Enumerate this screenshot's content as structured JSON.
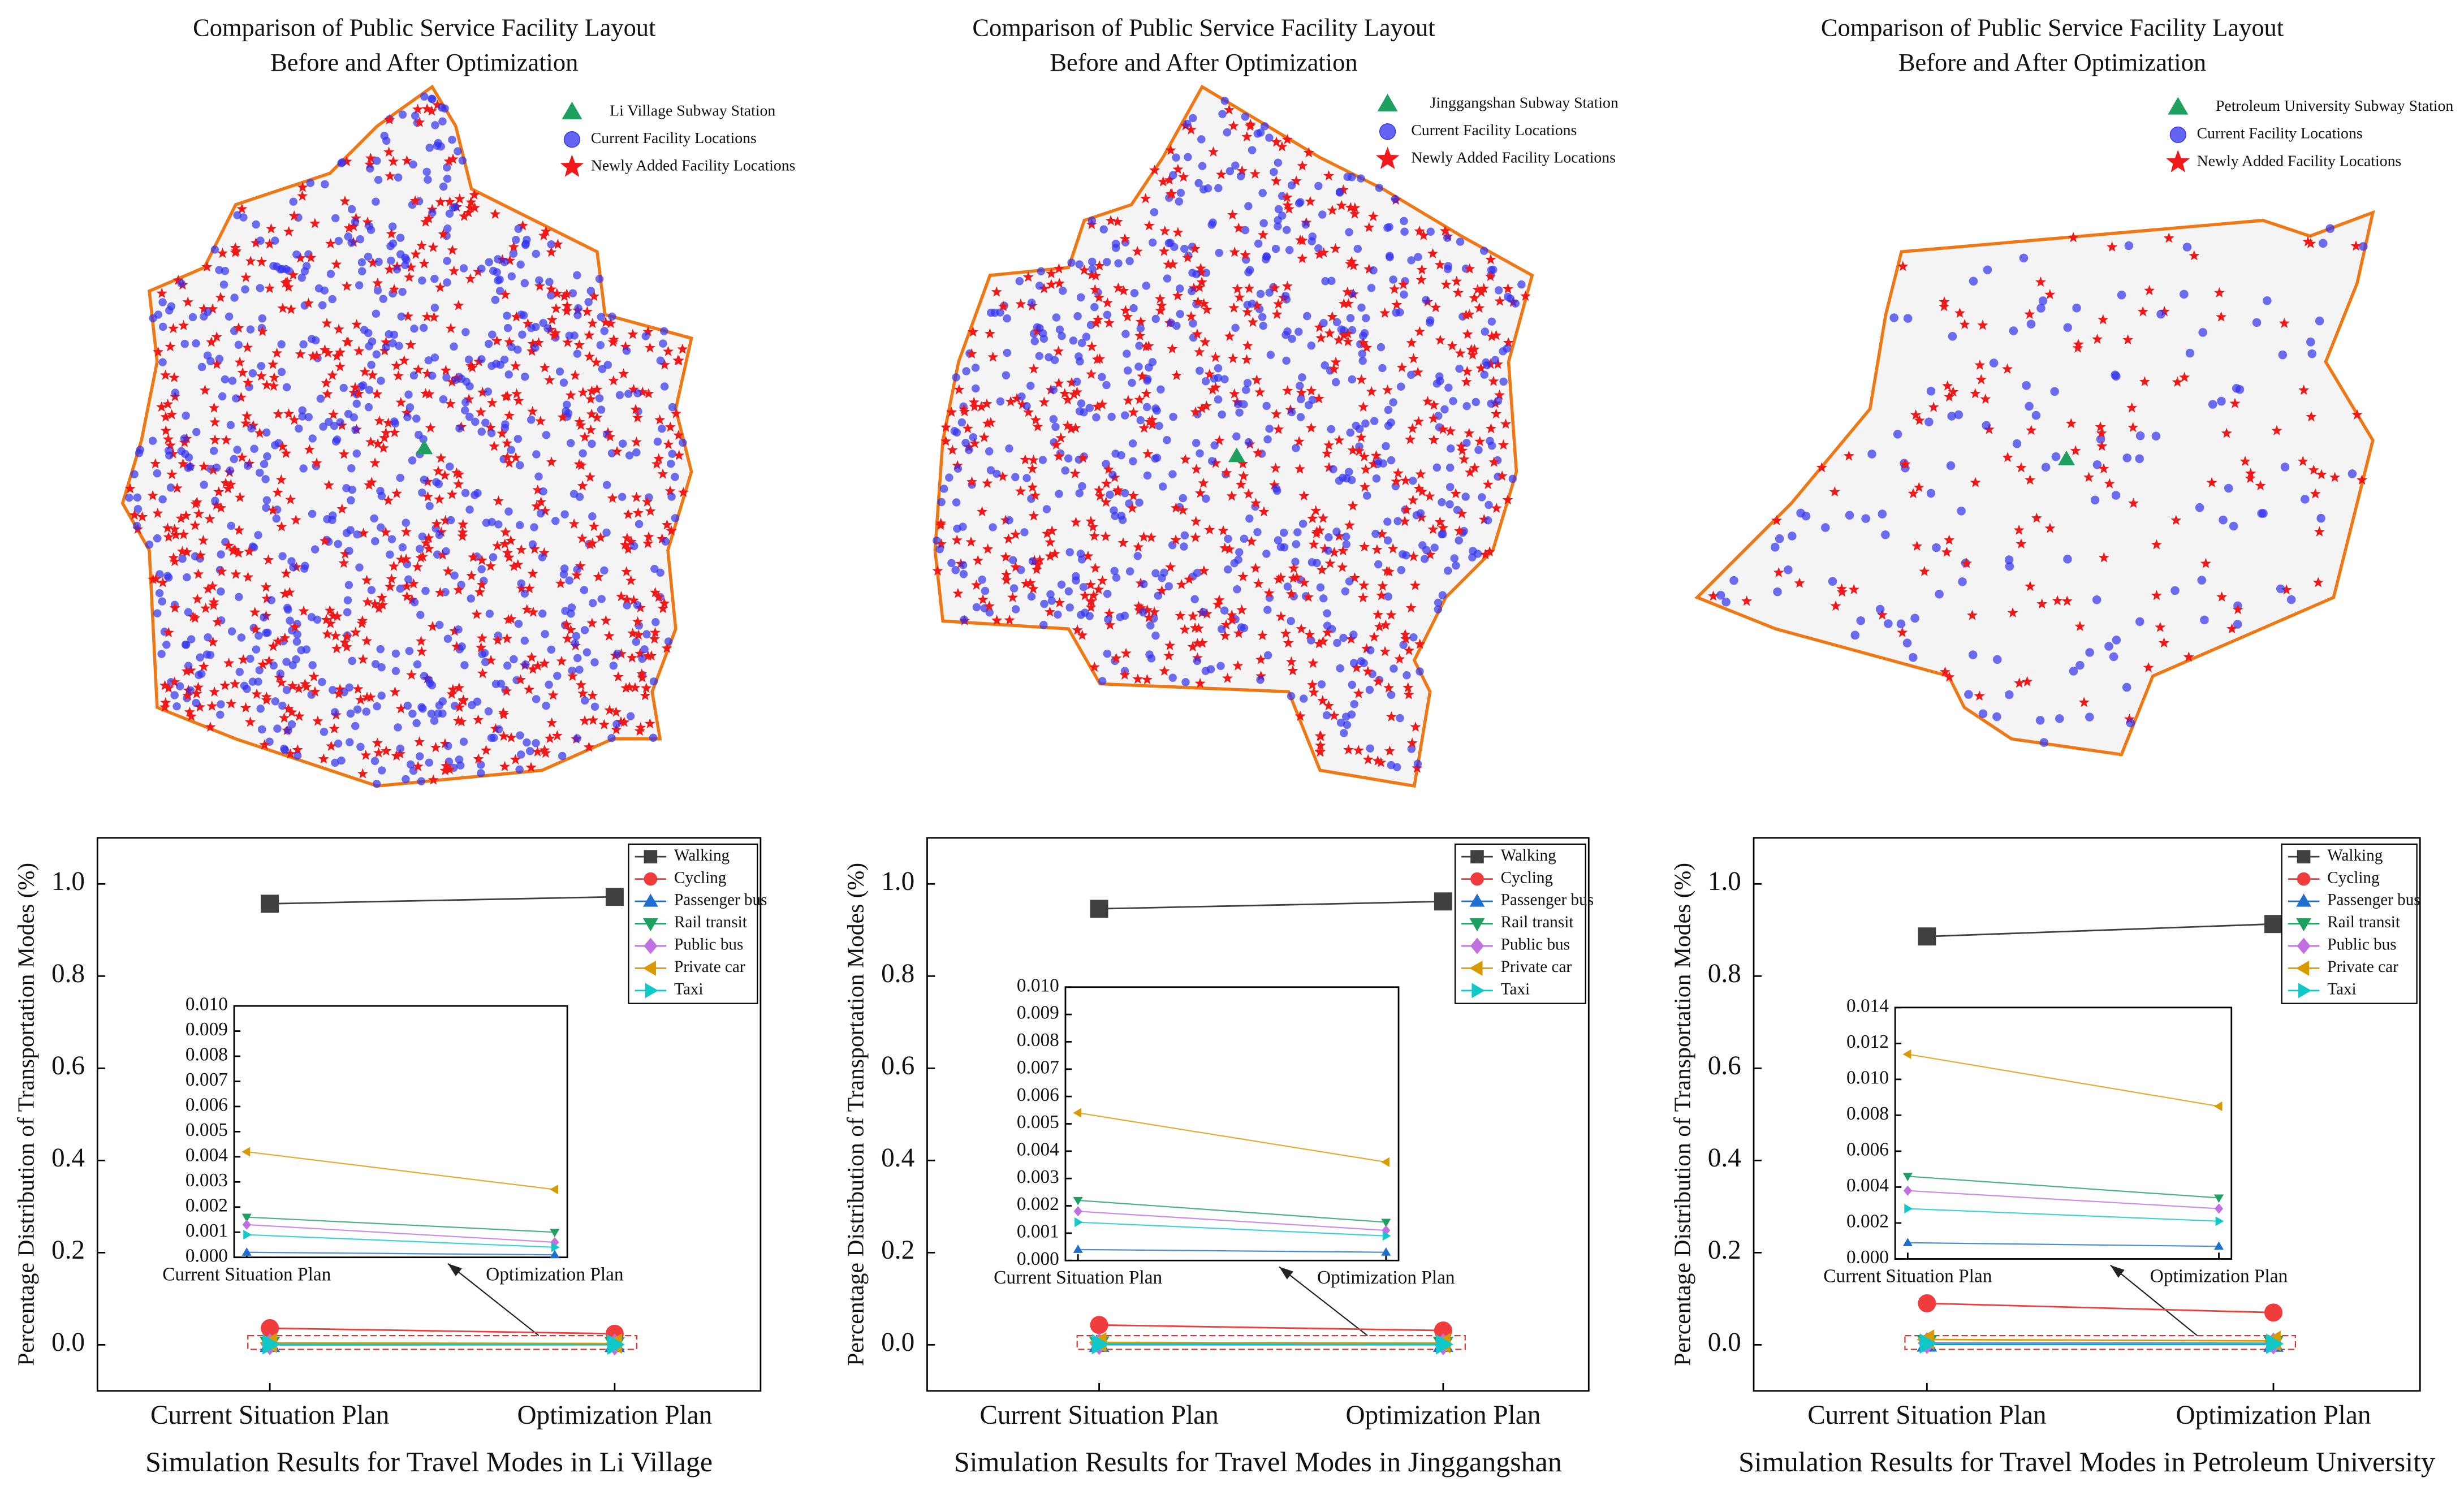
{
  "chart_data": [
    {
      "type": "map",
      "title": "Comparison of Public Service Facility Layout",
      "subtitle": "Before and After Optimization",
      "series": [
        {
          "name": "Li Village Subway Station",
          "color": "#1fa060",
          "marker": "triangle"
        },
        {
          "name": "Current Facility Locations",
          "color": "#3030ee",
          "marker": "circle"
        },
        {
          "name": "Newly Added Facility Locations",
          "color": "#f01818",
          "marker": "star"
        }
      ]
    },
    {
      "type": "line",
      "x_label": "Simulation Results for Travel Modes in Li Village",
      "y_label": "Percentage Distribution of Transportation Modes (%)",
      "categories": [
        "Current Situation Plan",
        "Optimization Plan"
      ],
      "ylim": [
        -0.1,
        1.1
      ],
      "yticks": [
        {
          "value": 0,
          "label": "0.0"
        },
        {
          "value": 0.2,
          "label": "0.2"
        },
        {
          "value": 0.4,
          "label": "0.4"
        },
        {
          "value": 0.6,
          "label": "0.6"
        },
        {
          "value": 0.8,
          "label": "0.8"
        },
        {
          "value": 1,
          "label": "1.0"
        }
      ],
      "series": [
        {
          "name": "Walking",
          "color": "#404040",
          "marker": "square",
          "values": [
            0.957,
            0.972
          ]
        },
        {
          "name": "Cycling",
          "color": "#f03c3c",
          "marker": "circle",
          "values": [
            0.036,
            0.024
          ]
        },
        {
          "name": "Passenger bus",
          "color": "#1f6fd0",
          "marker": "up",
          "values": [
            0.0002,
            0.0001
          ]
        },
        {
          "name": "Rail transit",
          "color": "#1fa060",
          "marker": "down",
          "values": [
            0.0016,
            0.001
          ]
        },
        {
          "name": "Public bus",
          "color": "#c070e0",
          "marker": "diamond",
          "values": [
            0.0013,
            0.0006
          ]
        },
        {
          "name": "Private car",
          "color": "#d89a00",
          "marker": "left",
          "values": [
            0.0042,
            0.0027
          ]
        },
        {
          "name": "Taxi",
          "color": "#10c8c8",
          "marker": "right",
          "values": [
            0.0009,
            0.0004
          ]
        }
      ],
      "inset": {
        "ylim": [
          0,
          0.01
        ],
        "yticks": [
          {
            "value": 0,
            "label": "0.000"
          },
          {
            "value": 0.001,
            "label": "0.001"
          },
          {
            "value": 0.002,
            "label": "0.002"
          },
          {
            "value": 0.003,
            "label": "0.003"
          },
          {
            "value": 0.004,
            "label": "0.004"
          },
          {
            "value": 0.005,
            "label": "0.005"
          },
          {
            "value": 0.006,
            "label": "0.006"
          },
          {
            "value": 0.007,
            "label": "0.007"
          },
          {
            "value": 0.008,
            "label": "0.008"
          },
          {
            "value": 0.009,
            "label": "0.009"
          },
          {
            "value": 0.01,
            "label": "0.010"
          }
        ]
      }
    },
    {
      "type": "map",
      "title": "Comparison of Public Service Facility Layout",
      "subtitle": "Before and After Optimization",
      "series": [
        {
          "name": "Jinggangshan Subway Station",
          "color": "#1fa060",
          "marker": "triangle"
        },
        {
          "name": "Current Facility Locations",
          "color": "#3030ee",
          "marker": "circle"
        },
        {
          "name": "Newly Added Facility Locations",
          "color": "#f01818",
          "marker": "star"
        }
      ]
    },
    {
      "type": "line",
      "x_label": "Simulation Results for Travel Modes in Jinggangshan",
      "y_label": "Percentage Distribution of Transportation Modes (%)",
      "categories": [
        "Current Situation Plan",
        "Optimization Plan"
      ],
      "ylim": [
        -0.1,
        1.1
      ],
      "yticks": [
        {
          "value": 0,
          "label": "0.0"
        },
        {
          "value": 0.2,
          "label": "0.2"
        },
        {
          "value": 0.4,
          "label": "0.4"
        },
        {
          "value": 0.6,
          "label": "0.6"
        },
        {
          "value": 0.8,
          "label": "0.8"
        },
        {
          "value": 1,
          "label": "1.0"
        }
      ],
      "series": [
        {
          "name": "Walking",
          "color": "#404040",
          "marker": "square",
          "values": [
            0.946,
            0.962
          ]
        },
        {
          "name": "Cycling",
          "color": "#f03c3c",
          "marker": "circle",
          "values": [
            0.043,
            0.031
          ]
        },
        {
          "name": "Passenger bus",
          "color": "#1f6fd0",
          "marker": "up",
          "values": [
            0.0004,
            0.0003
          ]
        },
        {
          "name": "Rail transit",
          "color": "#1fa060",
          "marker": "down",
          "values": [
            0.0022,
            0.0014
          ]
        },
        {
          "name": "Public bus",
          "color": "#c070e0",
          "marker": "diamond",
          "values": [
            0.0018,
            0.0011
          ]
        },
        {
          "name": "Private car",
          "color": "#d89a00",
          "marker": "left",
          "values": [
            0.0054,
            0.0036
          ]
        },
        {
          "name": "Taxi",
          "color": "#10c8c8",
          "marker": "right",
          "values": [
            0.0014,
            0.0009
          ]
        }
      ],
      "inset": {
        "ylim": [
          0,
          0.01
        ],
        "yticks": [
          {
            "value": 0,
            "label": "0.000"
          },
          {
            "value": 0.001,
            "label": "0.001"
          },
          {
            "value": 0.002,
            "label": "0.002"
          },
          {
            "value": 0.003,
            "label": "0.003"
          },
          {
            "value": 0.004,
            "label": "0.004"
          },
          {
            "value": 0.005,
            "label": "0.005"
          },
          {
            "value": 0.006,
            "label": "0.006"
          },
          {
            "value": 0.007,
            "label": "0.007"
          },
          {
            "value": 0.008,
            "label": "0.008"
          },
          {
            "value": 0.009,
            "label": "0.009"
          },
          {
            "value": 0.01,
            "label": "0.010"
          }
        ]
      }
    },
    {
      "type": "map",
      "title": "Comparison of Public Service Facility Layout",
      "subtitle": "Before and After Optimization",
      "series": [
        {
          "name": "Petroleum University Subway Station",
          "color": "#1fa060",
          "marker": "triangle"
        },
        {
          "name": "Current Facility Locations",
          "color": "#3030ee",
          "marker": "circle"
        },
        {
          "name": "Newly Added Facility Locations",
          "color": "#f01818",
          "marker": "star"
        }
      ]
    },
    {
      "type": "line",
      "x_label": "Simulation Results for Travel Modes in Petroleum University",
      "y_label": "Percentage Distribution of Transportation Modes (%)",
      "categories": [
        "Current Situation Plan",
        "Optimization Plan"
      ],
      "ylim": [
        -0.1,
        1.1
      ],
      "yticks": [
        {
          "value": 0,
          "label": "0.0"
        },
        {
          "value": 0.2,
          "label": "0.2"
        },
        {
          "value": 0.4,
          "label": "0.4"
        },
        {
          "value": 0.6,
          "label": "0.6"
        },
        {
          "value": 0.8,
          "label": "0.8"
        },
        {
          "value": 1,
          "label": "1.0"
        }
      ],
      "series": [
        {
          "name": "Walking",
          "color": "#404040",
          "marker": "square",
          "values": [
            0.886,
            0.913
          ]
        },
        {
          "name": "Cycling",
          "color": "#f03c3c",
          "marker": "circle",
          "values": [
            0.09,
            0.07
          ]
        },
        {
          "name": "Passenger bus",
          "color": "#1f6fd0",
          "marker": "up",
          "values": [
            0.0009,
            0.0007
          ]
        },
        {
          "name": "Rail transit",
          "color": "#1fa060",
          "marker": "down",
          "values": [
            0.0046,
            0.0034
          ]
        },
        {
          "name": "Public bus",
          "color": "#c070e0",
          "marker": "diamond",
          "values": [
            0.0038,
            0.0028
          ]
        },
        {
          "name": "Private car",
          "color": "#d89a00",
          "marker": "left",
          "values": [
            0.0114,
            0.0085
          ]
        },
        {
          "name": "Taxi",
          "color": "#10c8c8",
          "marker": "right",
          "values": [
            0.0028,
            0.0021
          ]
        }
      ],
      "inset": {
        "ylim": [
          0,
          0.014
        ],
        "yticks": [
          {
            "value": 0,
            "label": "0.000"
          },
          {
            "value": 0.002,
            "label": "0.002"
          },
          {
            "value": 0.004,
            "label": "0.004"
          },
          {
            "value": 0.006,
            "label": "0.006"
          },
          {
            "value": 0.008,
            "label": "0.008"
          },
          {
            "value": 0.01,
            "label": "0.010"
          },
          {
            "value": 0.012,
            "label": "0.012"
          },
          {
            "value": 0.014,
            "label": "0.014"
          }
        ]
      }
    }
  ]
}
